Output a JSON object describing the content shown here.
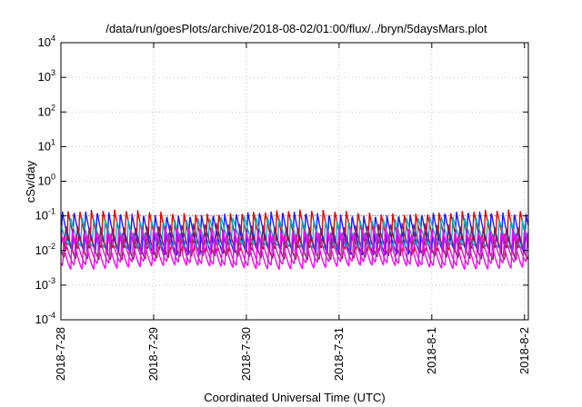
{
  "chart_data": {
    "type": "line",
    "title": "/data/run/goesPlots/archive/2018-08-02/01:00/flux/../bryn/5daysMars.plot",
    "xlabel": "Coordinated Universal Time (UTC)",
    "ylabel": "cSv/day",
    "yscale": "log",
    "ylim": [
      0.0001,
      10000
    ],
    "y_ticks": [
      {
        "value": 0.0001,
        "base": "10",
        "exp": "-4"
      },
      {
        "value": 0.001,
        "base": "10",
        "exp": "-3"
      },
      {
        "value": 0.01,
        "base": "10",
        "exp": "-2"
      },
      {
        "value": 0.1,
        "base": "10",
        "exp": "-1"
      },
      {
        "value": 1,
        "base": "10",
        "exp": "0"
      },
      {
        "value": 10,
        "base": "10",
        "exp": "1"
      },
      {
        "value": 100,
        "base": "10",
        "exp": "2"
      },
      {
        "value": 1000,
        "base": "10",
        "exp": "3"
      },
      {
        "value": 10000,
        "base": "10",
        "exp": "4"
      }
    ],
    "xlim": [
      "2018-07-28T00:00",
      "2018-08-02T01:00"
    ],
    "x_ticks": [
      {
        "value": "2018-07-28T00:00",
        "label": "2018-7-28"
      },
      {
        "value": "2018-07-29T00:00",
        "label": "2018-7-29"
      },
      {
        "value": "2018-07-30T00:00",
        "label": "2018-7-30"
      },
      {
        "value": "2018-07-31T00:00",
        "label": "2018-7-31"
      },
      {
        "value": "2018-08-01T00:00",
        "label": "2018-8-1"
      },
      {
        "value": "2018-08-02T00:00",
        "label": "2018-8-2"
      }
    ],
    "grid": true,
    "reference_line": {
      "y": 0.1,
      "color": "#e00000"
    },
    "series": [
      {
        "color": "#e00000",
        "peak": 0.13,
        "trough": 0.0105,
        "phase": 0.5
      },
      {
        "color": "#1a1aff",
        "peak": 0.12,
        "trough": 0.0085,
        "phase": 0.0
      },
      {
        "color": "#00b4c8",
        "peak": 0.082,
        "trough": 0.0128,
        "phase": 0.3
      },
      {
        "color": "#8a2050",
        "peak": 0.053,
        "trough": 0.0062,
        "phase": 0.7
      },
      {
        "color": "#ff00ff",
        "peak": 0.042,
        "trough": 0.0033,
        "phase": 0.15
      },
      {
        "color": "#cc22cc",
        "peak": 0.03,
        "trough": 0.0042,
        "phase": 0.85
      }
    ],
    "cycle_hours": 3.0
  }
}
